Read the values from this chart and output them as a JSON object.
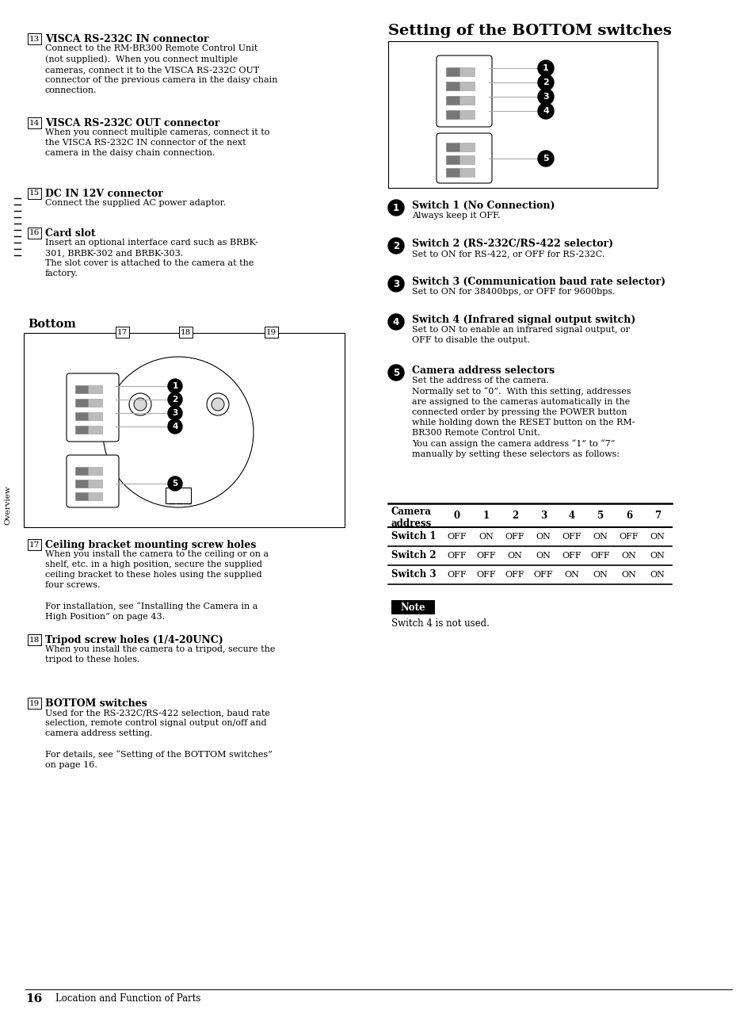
{
  "page_bg": "#ffffff",
  "title_right": "Setting of the BOTTOM switches",
  "sections_left": [
    {
      "num": "13",
      "title": "VISCA RS-232C IN connector",
      "body": "Connect to the RM-BR300 Remote Control Unit\n(not supplied).  When you connect multiple\ncameras, connect it to the VISCA RS-232C OUT\nconnector of the previous camera in the daisy chain\nconnection."
    },
    {
      "num": "14",
      "title": "VISCA RS-232C OUT connector",
      "body": "When you connect multiple cameras, connect it to\nthe VISCA RS-232C IN connector of the next\ncamera in the daisy chain connection."
    },
    {
      "num": "15",
      "title": "DC IN 12V connector",
      "body": "Connect the supplied AC power adaptor."
    },
    {
      "num": "16",
      "title": "Card slot",
      "body": "Insert an optional interface card such as BRBK-\n301, BRBK-302 and BRBK-303.\nThe slot cover is attached to the camera at the\nfactory."
    }
  ],
  "bottom_title": "Bottom",
  "bottom_labels": [
    "17",
    "18",
    "19"
  ],
  "bottom_sections": [
    {
      "num": "17",
      "title": "Ceiling bracket mounting screw holes",
      "body": "When you install the camera to the ceiling or on a\nshelf, etc. in a high position, secure the supplied\nceiling bracket to these holes using the supplied\nfour screws.\n\nFor installation, see “Installing the Camera in a\nHigh Position” on page 43."
    },
    {
      "num": "18",
      "title": "Tripod screw holes (1/4-20UNC)",
      "body": "When you install the camera to a tripod, secure the\ntripod to these holes."
    },
    {
      "num": "19",
      "title": "BOTTOM switches",
      "body": "Used for the RS-232C/RS-422 selection, baud rate\nselection, remote control signal output on/off and\ncamera address setting.\n\nFor details, see “Setting of the BOTTOM switches”\non page 16."
    }
  ],
  "switch_items": [
    {
      "num": "1",
      "title": "Switch 1 (No Connection)",
      "body": "Always keep it OFF."
    },
    {
      "num": "2",
      "title": "Switch 2 (RS-232C/RS-422 selector)",
      "body": "Set to ON for RS-422, or OFF for RS-232C."
    },
    {
      "num": "3",
      "title": "Switch 3 (Communication baud rate selector)",
      "body": "Set to ON for 38400bps, or OFF for 9600bps."
    },
    {
      "num": "4",
      "title": "Switch 4 (Infrared signal output switch)",
      "body": "Set to ON to enable an infrared signal output, or\nOFF to disable the output."
    },
    {
      "num": "5",
      "title": "Camera address selectors",
      "body": "Set the address of the camera.\nNormally set to “0”.  With this setting, addresses\nare assigned to the cameras automatically in the\nconnected order by pressing the POWER button\nwhile holding down the RESET button on the RM-\nBR300 Remote Control Unit.\nYou can assign the camera address “1” to “7”\nmanually by setting these selectors as follows:"
    }
  ],
  "table_header": [
    "Camera\naddress",
    "0",
    "1",
    "2",
    "3",
    "4",
    "5",
    "6",
    "7"
  ],
  "table_rows": [
    [
      "Switch 1",
      "OFF",
      "ON",
      "OFF",
      "ON",
      "OFF",
      "ON",
      "OFF",
      "ON"
    ],
    [
      "Switch 2",
      "OFF",
      "OFF",
      "ON",
      "ON",
      "OFF",
      "OFF",
      "ON",
      "ON"
    ],
    [
      "Switch 3",
      "OFF",
      "OFF",
      "OFF",
      "OFF",
      "ON",
      "ON",
      "ON",
      "ON"
    ]
  ],
  "note_label": "Note",
  "note_text": "Switch 4 is not used.",
  "page_number": "16",
  "page_footer": "Location and Function of Parts",
  "sidebar_text": "Overview"
}
